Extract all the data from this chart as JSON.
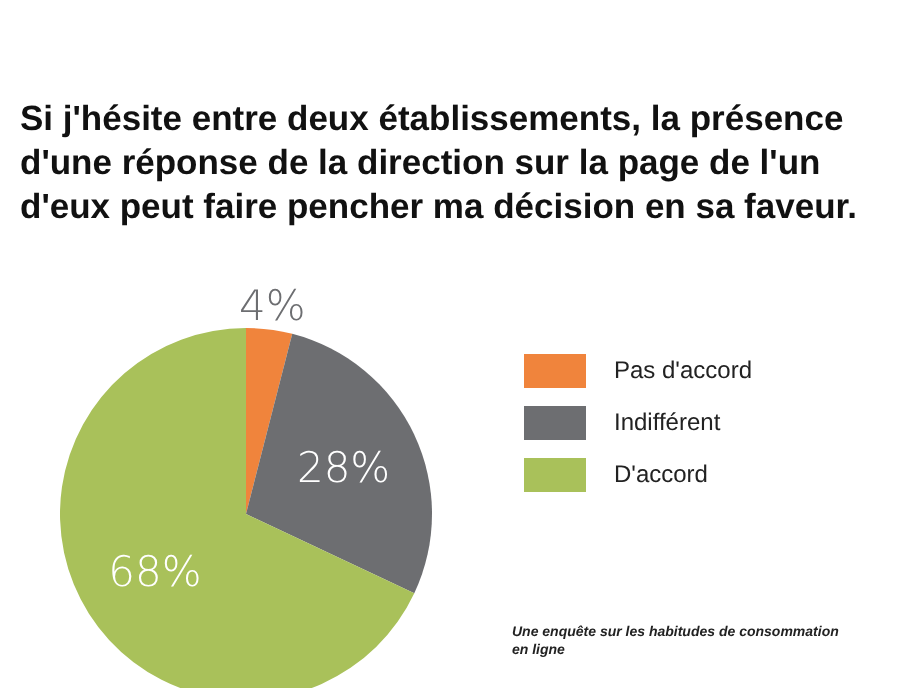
{
  "chart_data": {
    "type": "pie",
    "title": "Si j'hésite entre deux établissements, la présence d'une réponse de la direction sur la page de l'un d'eux peut faire pencher ma décision en sa faveur.",
    "categories": [
      "Pas d'accord",
      "Indifférent",
      "D'accord"
    ],
    "values": [
      4,
      28,
      68
    ],
    "colors": [
      "#f0843c",
      "#6d6e71",
      "#a9c15a"
    ],
    "value_labels": [
      "4%",
      "28%",
      "68%"
    ],
    "legend": "right",
    "annotations": [
      "Une enquête sur les habitudes de consommation en ligne"
    ]
  }
}
